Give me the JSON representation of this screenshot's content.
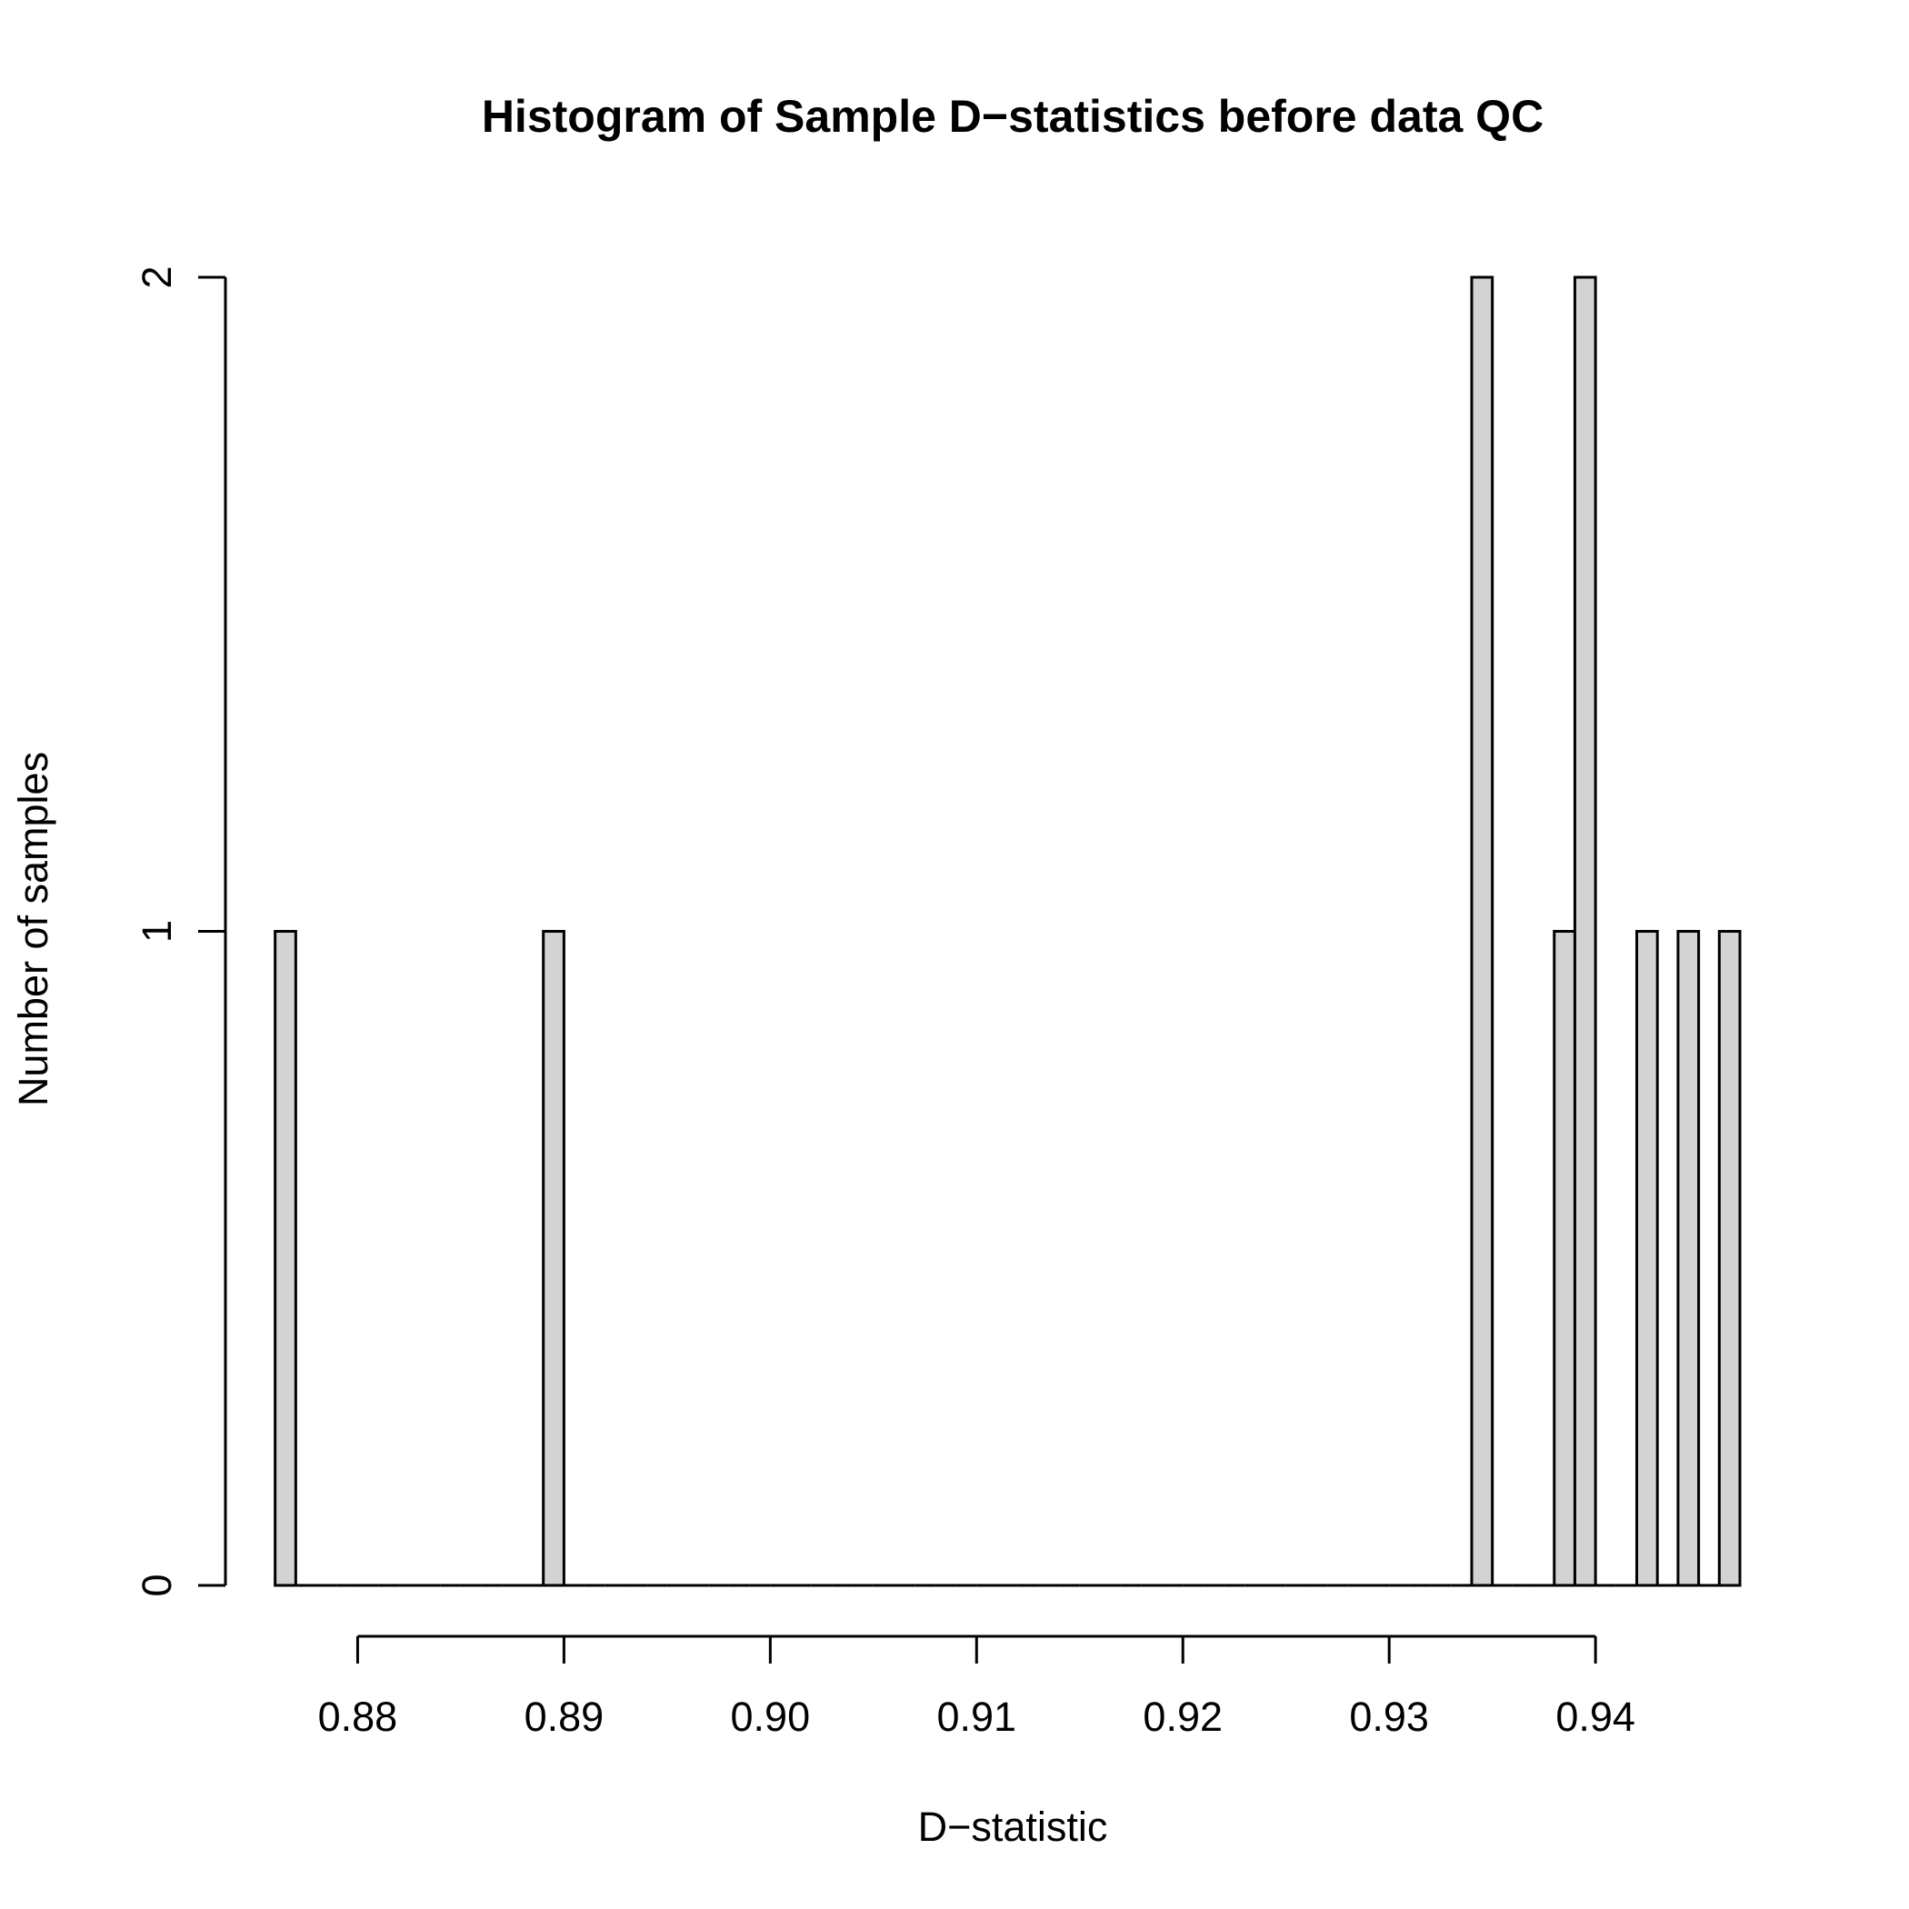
{
  "chart_data": {
    "type": "bar",
    "title": "Histogram of Sample D−statistics before data QC",
    "xlabel": "D−statistic",
    "ylabel": "Number of samples",
    "xlim": [
      0.8765,
      0.947
    ],
    "ylim": [
      0,
      2
    ],
    "xticks": [
      0.88,
      0.89,
      0.9,
      0.91,
      0.92,
      0.93,
      0.94
    ],
    "xtick_labels": [
      "0.88",
      "0.89",
      "0.90",
      "0.91",
      "0.92",
      "0.93",
      "0.94"
    ],
    "yticks": [
      0,
      1,
      2
    ],
    "ytick_labels": [
      "0",
      "1",
      "2"
    ],
    "bin_width": 0.001,
    "bins": [
      {
        "start": 0.876,
        "end": 0.877,
        "count": 1
      },
      {
        "start": 0.889,
        "end": 0.89,
        "count": 1
      },
      {
        "start": 0.934,
        "end": 0.935,
        "count": 2
      },
      {
        "start": 0.938,
        "end": 0.939,
        "count": 1
      },
      {
        "start": 0.939,
        "end": 0.94,
        "count": 2
      },
      {
        "start": 0.942,
        "end": 0.943,
        "count": 1
      },
      {
        "start": 0.944,
        "end": 0.945,
        "count": 1
      },
      {
        "start": 0.946,
        "end": 0.947,
        "count": 1
      }
    ],
    "bar_fill": "#d3d3d3",
    "grid": false,
    "legend": "none"
  }
}
